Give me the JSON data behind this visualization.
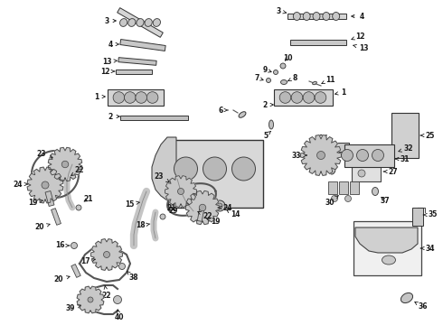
{
  "bg": "#f5f5f0",
  "lc": "#1a1a1a",
  "fc": "#e8e8e8",
  "fc2": "#d0d0d0",
  "fc3": "#c0c0c0",
  "lw": 0.7,
  "fontsize": 5.5,
  "bold_font": true
}
